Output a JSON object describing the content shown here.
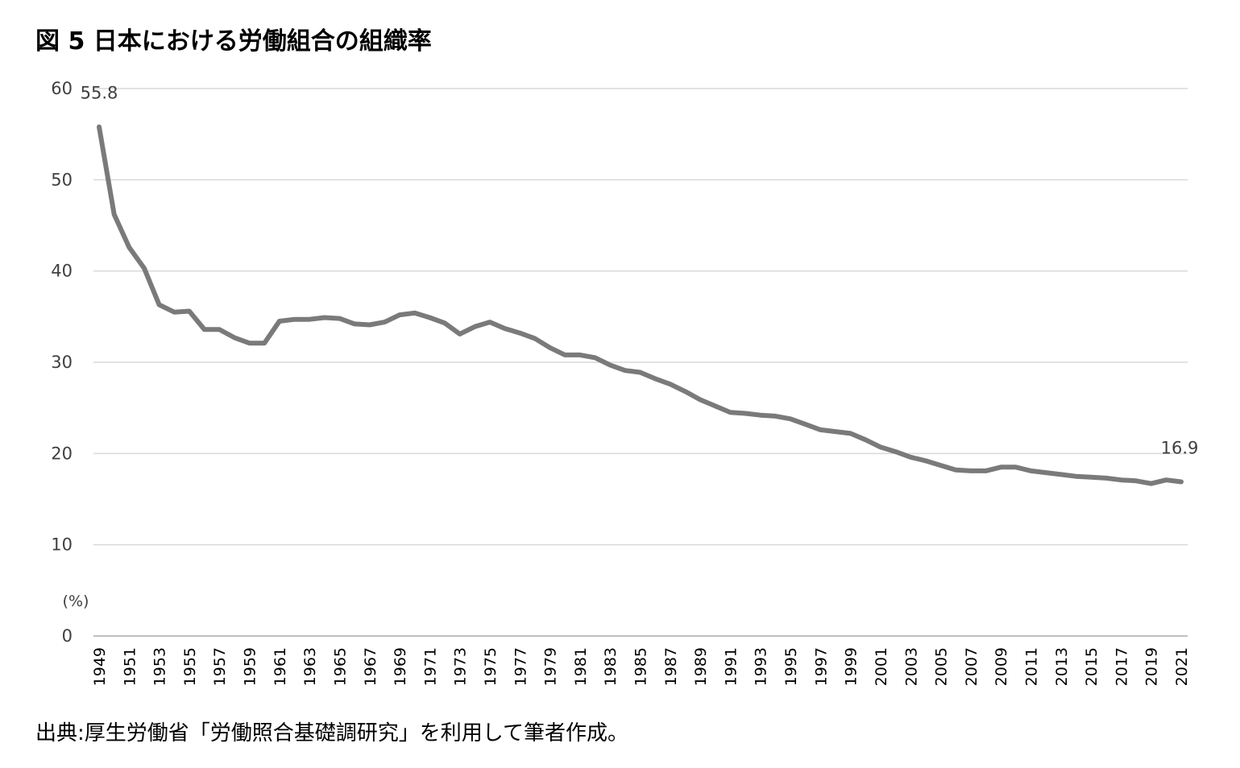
{
  "title": "図 5  日本における労働組合の組織率",
  "source": "出典:厚生労働省「労働照合基礎調研究」を利用して筆者作成。",
  "chart_data": {
    "type": "line",
    "title": "図 5  日本における労働組合の組織率",
    "xlabel": "",
    "ylabel": "(%)",
    "ylim": [
      0,
      60
    ],
    "yticks": [
      0,
      10,
      20,
      30,
      40,
      50,
      60
    ],
    "grid": true,
    "line_color": "#7a7a7a",
    "grid_color": "#d9d9d9",
    "x": [
      1949,
      1950,
      1951,
      1952,
      1953,
      1954,
      1955,
      1956,
      1957,
      1958,
      1959,
      1960,
      1961,
      1962,
      1963,
      1964,
      1965,
      1966,
      1967,
      1968,
      1969,
      1970,
      1971,
      1972,
      1973,
      1974,
      1975,
      1976,
      1977,
      1978,
      1979,
      1980,
      1981,
      1982,
      1983,
      1984,
      1985,
      1986,
      1987,
      1988,
      1989,
      1990,
      1991,
      1992,
      1993,
      1994,
      1995,
      1996,
      1997,
      1998,
      1999,
      2000,
      2001,
      2002,
      2003,
      2004,
      2005,
      2006,
      2007,
      2008,
      2009,
      2010,
      2011,
      2012,
      2013,
      2014,
      2015,
      2016,
      2017,
      2018,
      2019,
      2020,
      2021
    ],
    "xtick_labels": [
      "1949",
      "1951",
      "1953",
      "1955",
      "1957",
      "1959",
      "1961",
      "1963",
      "1965",
      "1967",
      "1969",
      "1971",
      "1973",
      "1975",
      "1977",
      "1979",
      "1981",
      "1983",
      "1985",
      "1987",
      "1989",
      "1991",
      "1993",
      "1995",
      "1997",
      "1999",
      "2001",
      "2003",
      "2005",
      "2007",
      "2009",
      "2011",
      "2013",
      "2015",
      "2017",
      "2019",
      "2021"
    ],
    "series": [
      {
        "values": [
          55.8,
          46.2,
          42.6,
          40.3,
          36.3,
          35.5,
          35.6,
          33.6,
          33.6,
          32.7,
          32.1,
          32.1,
          34.5,
          34.7,
          34.7,
          34.9,
          34.8,
          34.2,
          34.1,
          34.4,
          35.2,
          35.4,
          34.9,
          34.3,
          33.1,
          33.9,
          34.4,
          33.7,
          33.2,
          32.6,
          31.6,
          30.8,
          30.8,
          30.5,
          29.7,
          29.1,
          28.9,
          28.2,
          27.6,
          26.8,
          25.9,
          25.2,
          24.5,
          24.4,
          24.2,
          24.1,
          23.8,
          23.2,
          22.6,
          22.4,
          22.2,
          21.5,
          20.7,
          20.2,
          19.6,
          19.2,
          18.7,
          18.2,
          18.1,
          18.1,
          18.5,
          18.5,
          18.1,
          17.9,
          17.7,
          17.5,
          17.4,
          17.3,
          17.1,
          17.0,
          16.7,
          17.1,
          16.9
        ]
      }
    ],
    "annotations": [
      {
        "x": 1949,
        "y": 55.8,
        "text": "55.8"
      },
      {
        "x": 2021,
        "y": 16.9,
        "text": "16.9"
      }
    ]
  }
}
